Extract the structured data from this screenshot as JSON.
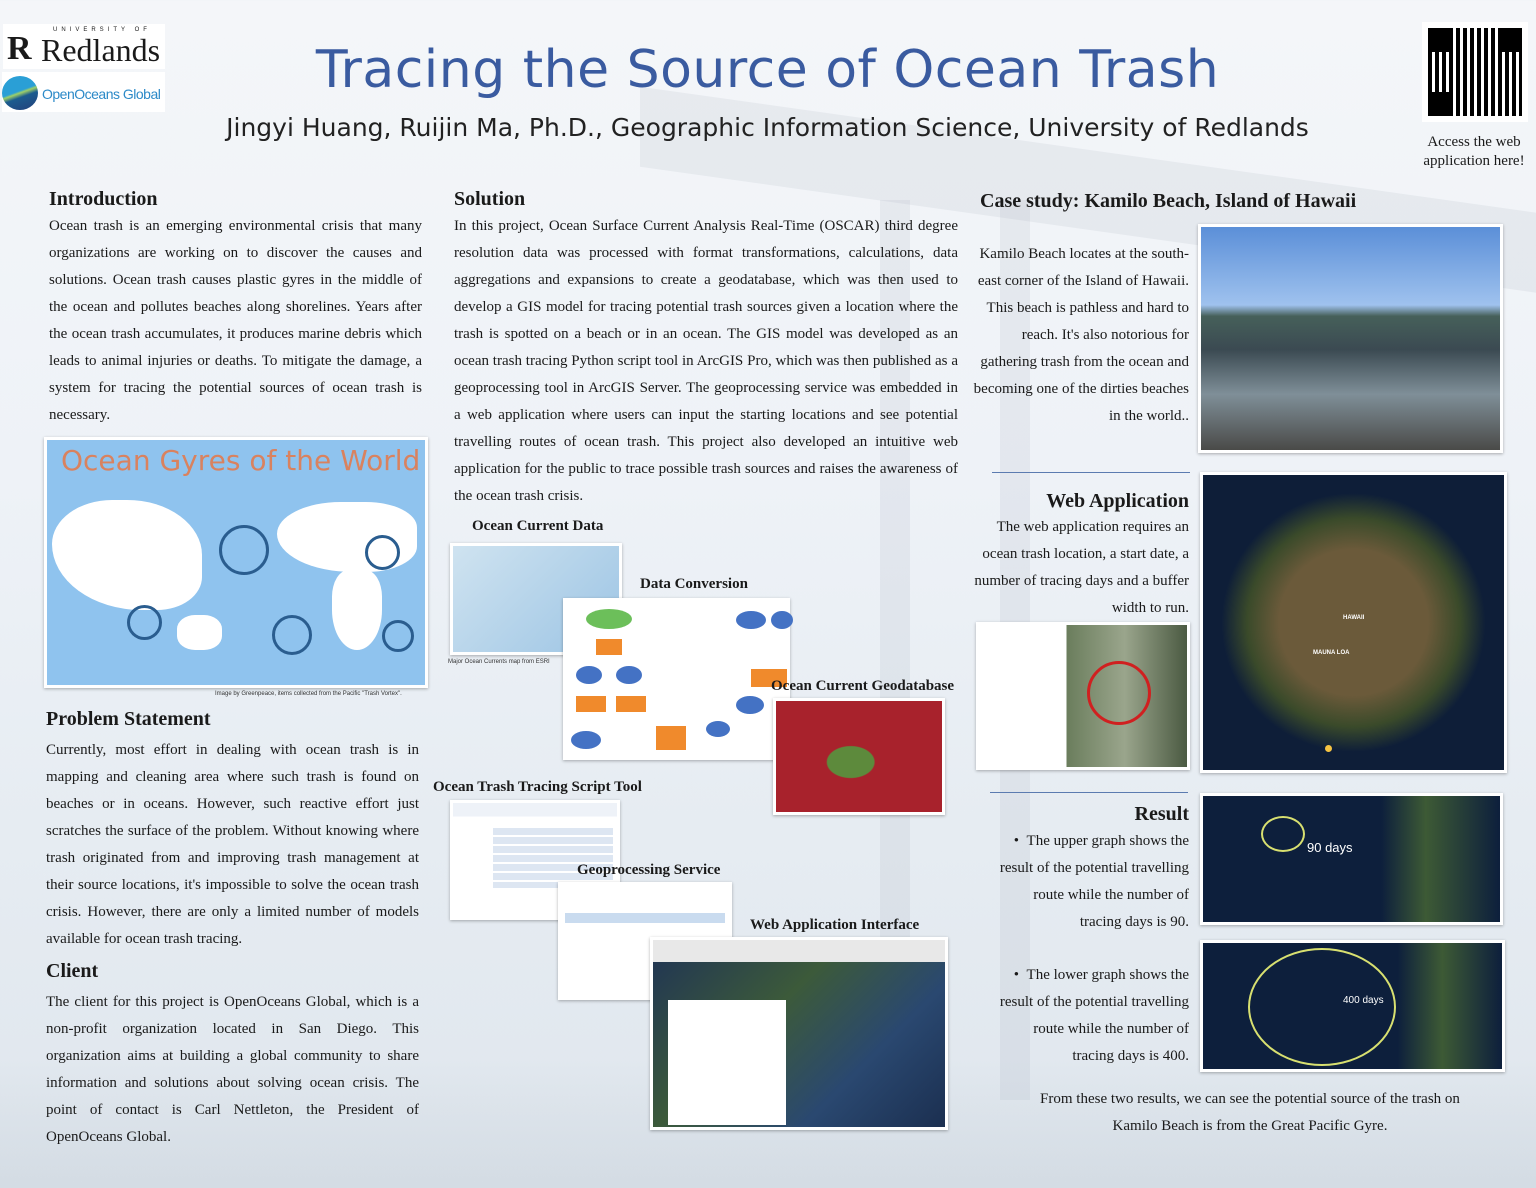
{
  "header": {
    "title": "Tracing the Source of Ocean Trash",
    "authors": "Jingyi Huang, Ruijin Ma, Ph.D., Geographic Information Science, University of Redlands",
    "logo_redlands_small": "UNIVERSITY OF",
    "logo_redlands": "Redlands",
    "logo_ooglobal": "OpenOceans Global",
    "qr_caption": "Access the web application here!"
  },
  "colors": {
    "title": "#3a5ba0",
    "gyre_title": "#d9825f",
    "ocean": "#8fc3ee",
    "geodb": "#a8222c"
  },
  "intro": {
    "heading": "Introduction",
    "text": "Ocean trash is an emerging environmental crisis that many organizations are working on to discover the causes and solutions. Ocean trash causes plastic gyres in the middle of the ocean and pollutes beaches along shorelines. Years after the ocean trash accumulates, it produces marine debris which leads to animal injuries or deaths. To mitigate the damage, a system for tracing the potential sources of ocean trash is necessary.",
    "image_title": "Ocean Gyres of the World",
    "image_caption": "Image by Greenpeace, items collected from the Pacific \"Trash Vortex\"."
  },
  "problem": {
    "heading": "Problem Statement",
    "text": "Currently, most effort in dealing with ocean trash is in mapping and cleaning area where such trash is found on beaches or in oceans. However, such reactive effort just scratches the surface of the problem. Without knowing where trash originated from and improving trash management at their source locations, it's impossible to solve the ocean trash crisis. However, there are only a limited number of models available for ocean trash tracing."
  },
  "client": {
    "heading": "Client",
    "text": "The client for this project is OpenOceans Global, which is a non-profit organization located in San Diego. This organization aims at building a global community to share information and solutions about solving ocean crisis. The point of contact is Carl Nettleton, the President of OpenOceans Global."
  },
  "solution": {
    "heading": "Solution",
    "text": "In this project, Ocean Surface Current Analysis Real-Time (OSCAR) third degree resolution data was processed with format transformations, calculations, data aggregations and expansions to create a geodatabase, which was then used to develop a GIS model for tracing potential trash sources given a location where the trash is spotted on a beach or in an ocean. The GIS model was developed as an ocean trash tracing Python script tool in ArcGIS Pro, which was then published as a geoprocessing tool in ArcGIS Server. The geoprocessing service was embedded in a web application where users can input the starting locations and see potential travelling routes of ocean trash. This project also developed an intuitive web application for the public to trace possible trash sources and raises the awareness of the ocean trash crisis.",
    "figures": {
      "ocean_current_data": "Ocean Current Data",
      "ocean_current_caption": "Major Ocean Currents map from ESRI",
      "data_conversion": "Data Conversion",
      "geodatabase": "Ocean Current Geodatabase",
      "script_tool": "Ocean Trash Tracing Script Tool",
      "gp_service": "Geoprocessing Service",
      "web_interface": "Web Application Interface"
    }
  },
  "case": {
    "heading": "Case study: Kamilo Beach, Island of Hawaii",
    "text": "Kamilo Beach locates at the south-east corner of the Island of Hawaii. This beach is pathless and hard to reach. It's also notorious for gathering trash from the ocean and becoming one of the dirties beaches in the world.."
  },
  "webapp": {
    "heading": "Web Application",
    "text": "The web application requires an ocean trash location, a start date, a number of tracing days and a buffer width to run.",
    "map_label_1": "HAWAII",
    "map_label_2": "MAUNA LOA"
  },
  "result": {
    "heading": "Result",
    "bullets": [
      "The upper graph shows the result of the potential travelling route while the  number of tracing days is 90.",
      "The lower graph shows the result of the potential travelling route while the  number of tracing days is 400."
    ],
    "label_90": "90 days",
    "label_400": "400 days",
    "conclusion": "From these two results, we can see the potential source of the trash on Kamilo Beach is from the Great Pacific Gyre."
  }
}
